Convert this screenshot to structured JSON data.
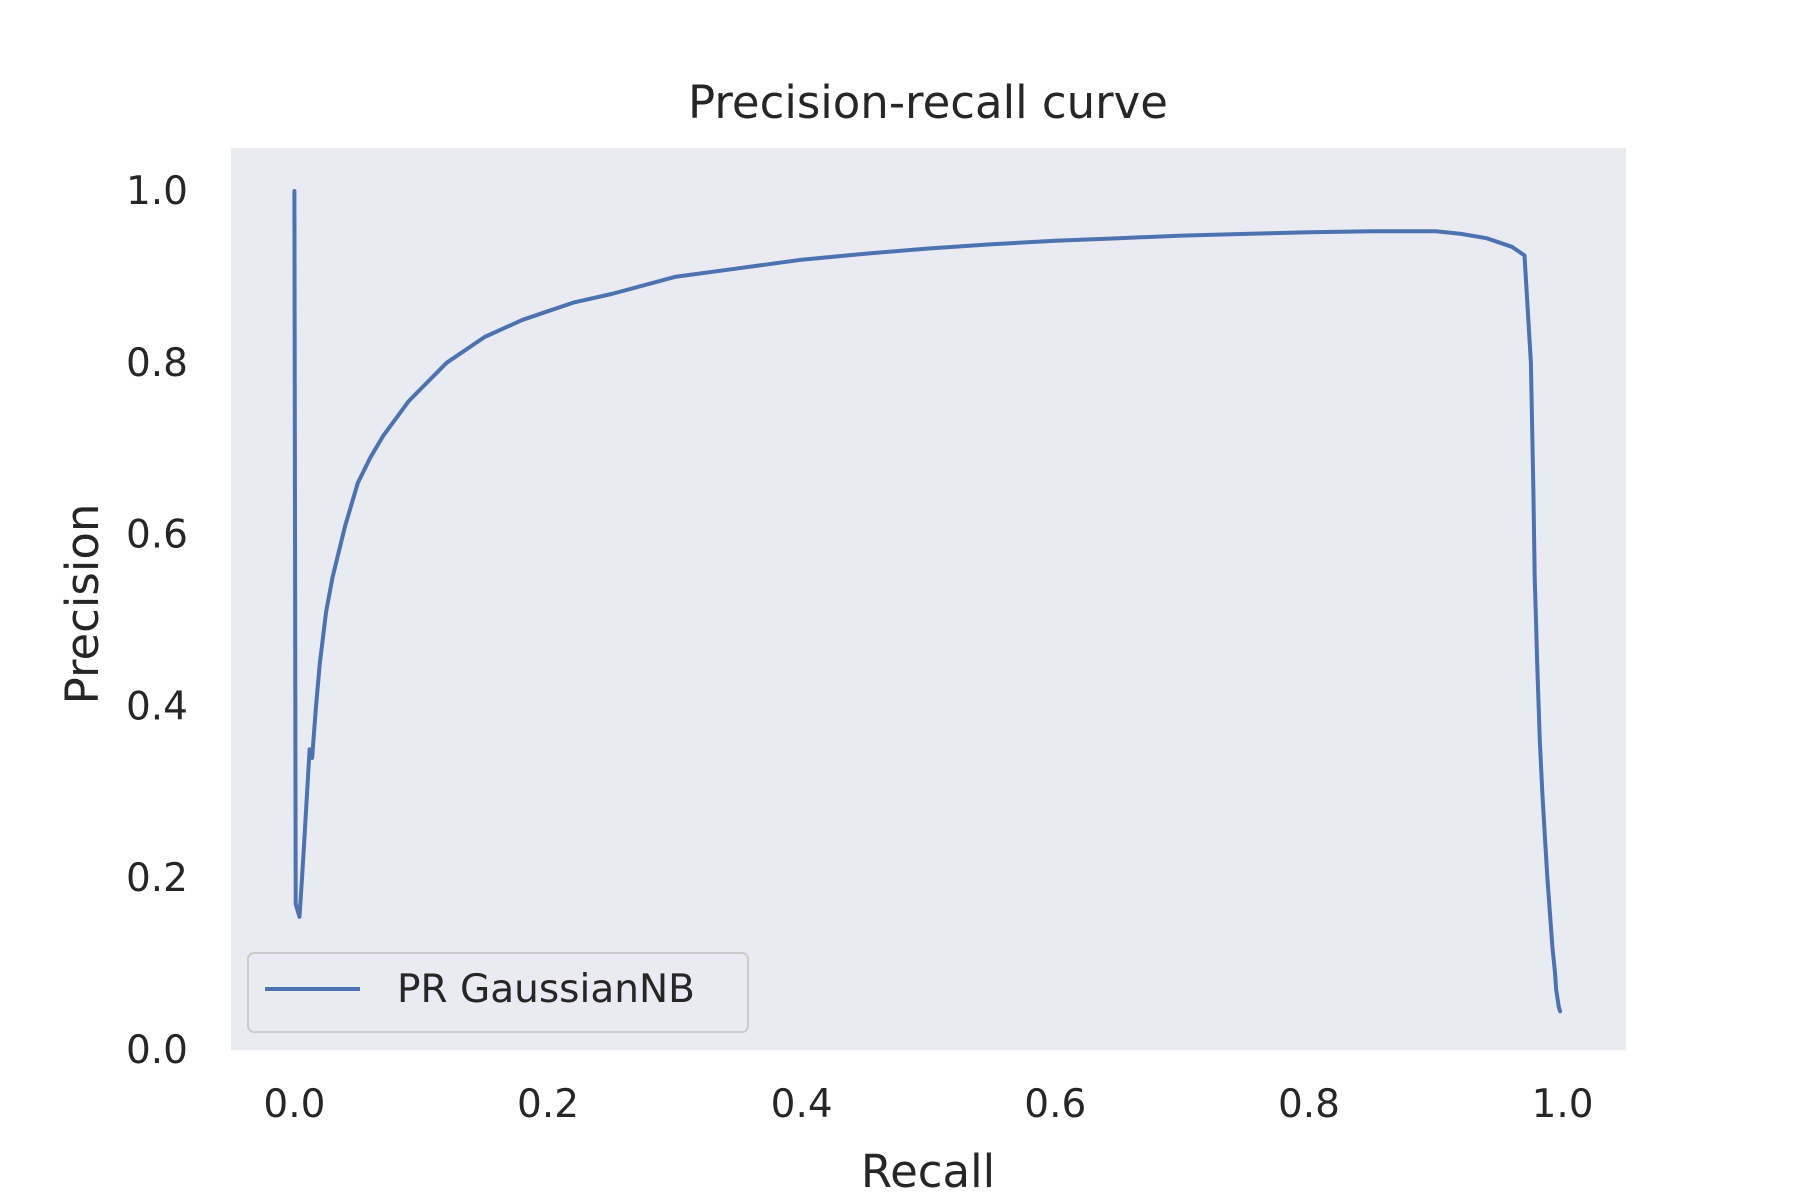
{
  "chart_data": {
    "type": "line",
    "title": "Precision-recall curve",
    "xlabel": "Recall",
    "ylabel": "Precision",
    "xlim": [
      -0.05,
      1.05
    ],
    "ylim": [
      0.0,
      1.05
    ],
    "xticks": [
      0.0,
      0.2,
      0.4,
      0.6,
      0.8,
      1.0
    ],
    "xtick_labels": [
      "0.0",
      "0.2",
      "0.4",
      "0.6",
      "0.8",
      "1.0"
    ],
    "yticks": [
      0.0,
      0.2,
      0.4,
      0.6,
      0.8,
      1.0
    ],
    "ytick_labels": [
      "0.0",
      "0.2",
      "0.4",
      "0.6",
      "0.8",
      "1.0"
    ],
    "grid": false,
    "legend_position": "lower-left",
    "background_color": "#eaeaf2",
    "series": [
      {
        "name": "PR GaussianNB",
        "color": "#4c72b0",
        "x": [
          0.0,
          0.001,
          0.004,
          0.006,
          0.008,
          0.01,
          0.012,
          0.014,
          0.015,
          0.017,
          0.02,
          0.025,
          0.03,
          0.04,
          0.05,
          0.06,
          0.07,
          0.08,
          0.09,
          0.1,
          0.12,
          0.15,
          0.18,
          0.2,
          0.22,
          0.25,
          0.3,
          0.35,
          0.4,
          0.45,
          0.5,
          0.55,
          0.6,
          0.65,
          0.7,
          0.75,
          0.8,
          0.85,
          0.9,
          0.92,
          0.94,
          0.96,
          0.97,
          0.975,
          0.977,
          0.978,
          0.979,
          0.98,
          0.982,
          0.984,
          0.986,
          0.988,
          0.99,
          0.992,
          0.994,
          0.995,
          0.996,
          0.997,
          0.998
        ],
        "y": [
          1.0,
          0.17,
          0.155,
          0.2,
          0.25,
          0.3,
          0.35,
          0.34,
          0.36,
          0.4,
          0.45,
          0.51,
          0.55,
          0.61,
          0.66,
          0.69,
          0.715,
          0.735,
          0.755,
          0.77,
          0.8,
          0.83,
          0.85,
          0.86,
          0.87,
          0.88,
          0.9,
          0.91,
          0.92,
          0.927,
          0.933,
          0.938,
          0.942,
          0.945,
          0.948,
          0.95,
          0.952,
          0.953,
          0.953,
          0.95,
          0.945,
          0.935,
          0.925,
          0.8,
          0.65,
          0.55,
          0.5,
          0.45,
          0.36,
          0.3,
          0.25,
          0.2,
          0.16,
          0.12,
          0.09,
          0.07,
          0.06,
          0.05,
          0.045
        ]
      }
    ]
  }
}
